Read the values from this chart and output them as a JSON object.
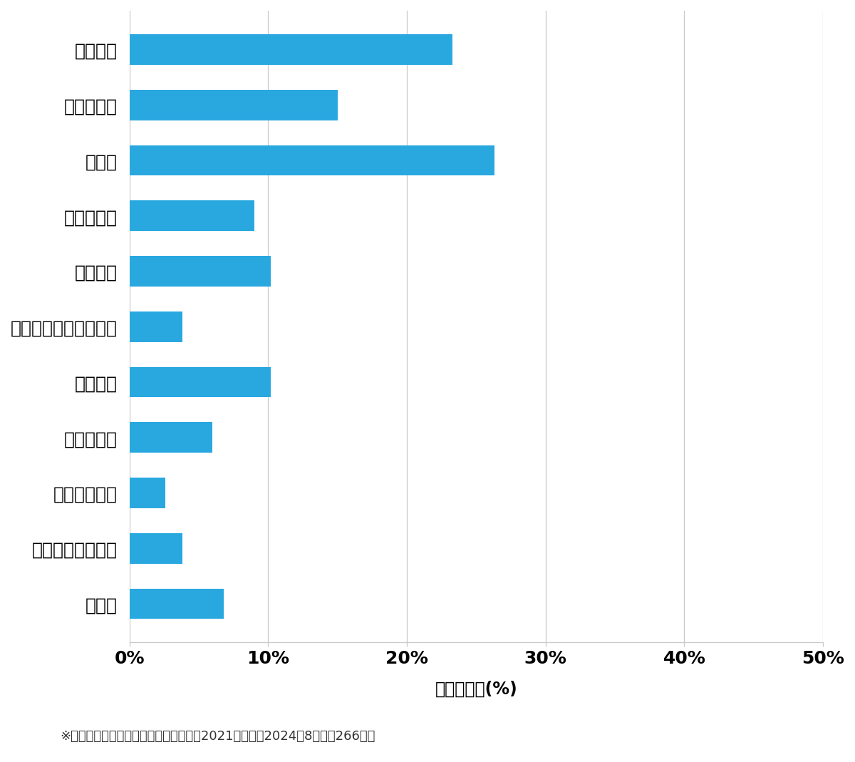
{
  "categories": [
    "玄関開錠",
    "玄関鍵交換",
    "車開錠",
    "その他開錠",
    "車鍵作成",
    "イモビ付国産車鍵作成",
    "金庫開錠",
    "玄関鍵作成",
    "その他鍵作成",
    "スーツケース開錠",
    "その他"
  ],
  "values": [
    23.3,
    15.0,
    26.3,
    9.0,
    10.2,
    3.8,
    10.2,
    6.0,
    2.6,
    3.8,
    6.8
  ],
  "bar_color": "#29a8e0",
  "background_color": "#ffffff",
  "xlabel": "件数の割合(%)",
  "xlim": [
    0,
    50
  ],
  "xticks": [
    0,
    10,
    20,
    30,
    40,
    50
  ],
  "xticklabels": [
    "0%",
    "10%",
    "20%",
    "30%",
    "40%",
    "50%"
  ],
  "footnote": "※弊社受付の案件を対象に集計（期間：2021年１月～2024年8月、計266件）",
  "grid_color": "#c8c8c8",
  "bar_height": 0.55,
  "label_fontsize": 18,
  "tick_fontsize": 18,
  "xlabel_fontsize": 17,
  "footnote_fontsize": 13
}
